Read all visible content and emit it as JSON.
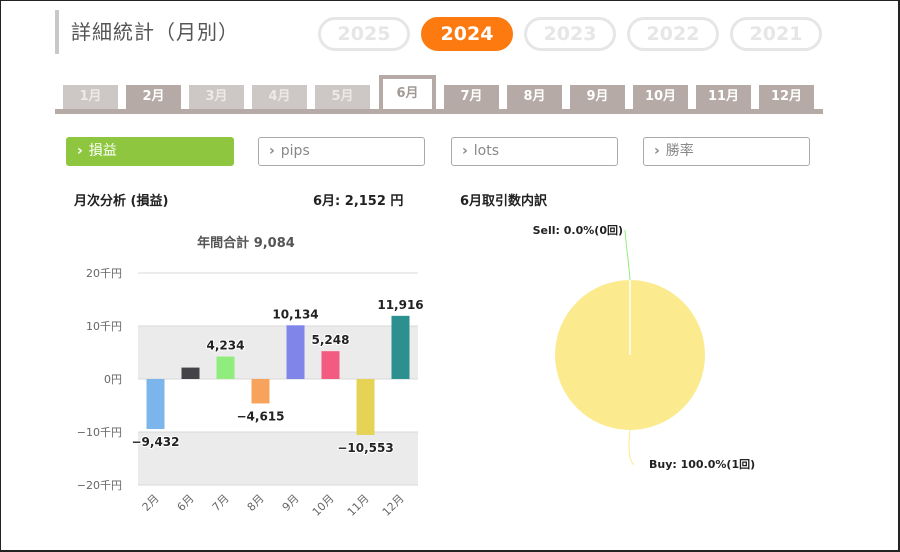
{
  "page": {
    "title": "詳細統計（月別）"
  },
  "years": [
    {
      "label": "2025",
      "active": false
    },
    {
      "label": "2024",
      "active": true
    },
    {
      "label": "2023",
      "active": false
    },
    {
      "label": "2022",
      "active": false
    },
    {
      "label": "2021",
      "active": false
    }
  ],
  "months": [
    {
      "label": "1月",
      "state": "disabled"
    },
    {
      "label": "2月",
      "state": "normal"
    },
    {
      "label": "3月",
      "state": "disabled"
    },
    {
      "label": "4月",
      "state": "disabled"
    },
    {
      "label": "5月",
      "state": "disabled"
    },
    {
      "label": "6月",
      "state": "active"
    },
    {
      "label": "7月",
      "state": "normal"
    },
    {
      "label": "8月",
      "state": "normal"
    },
    {
      "label": "9月",
      "state": "normal"
    },
    {
      "label": "10月",
      "state": "normal"
    },
    {
      "label": "11月",
      "state": "normal"
    },
    {
      "label": "12月",
      "state": "normal"
    }
  ],
  "metrics": [
    {
      "label": "損益",
      "active": true
    },
    {
      "label": "pips",
      "active": false
    },
    {
      "label": "lots",
      "active": false
    },
    {
      "label": "勝率",
      "active": false
    }
  ],
  "summary": {
    "analysis_label": "月次分析 (損益)",
    "month_value": "6月:  2,152 円",
    "breakdown_label": "6月取引数内訳"
  },
  "chart_data": [
    {
      "type": "bar",
      "title": "年間合計 9,084",
      "categories": [
        "2月",
        "6月",
        "7月",
        "8月",
        "9月",
        "10月",
        "11月",
        "12月"
      ],
      "values": [
        -9432,
        2152,
        4234,
        -4615,
        10134,
        5248,
        -10553,
        11916
      ],
      "data_labels": [
        "−9,432",
        "",
        "4,234",
        "−4,615",
        "10,134",
        "5,248",
        "−10,553",
        "11,916"
      ],
      "colors": [
        "#7cb5ec",
        "#434348",
        "#90ed7d",
        "#f7a35c",
        "#8085e9",
        "#f15c80",
        "#e4d354",
        "#2b908f"
      ],
      "ylim": [
        -20000,
        20000
      ],
      "yticks": [
        20000,
        10000,
        0,
        -10000,
        -20000
      ],
      "ytick_labels": [
        "20千円",
        "10千円",
        "0円",
        "−10千円",
        "−20千円"
      ],
      "grid": true
    },
    {
      "type": "pie",
      "slices": [
        {
          "label": "Sell: 0.0%(0回)",
          "percent": 0.0,
          "count": 0,
          "color": "#90ed7d"
        },
        {
          "label": "Buy: 100.0%(1回)",
          "percent": 100.0,
          "count": 1,
          "color": "#fbea8e"
        }
      ]
    }
  ]
}
